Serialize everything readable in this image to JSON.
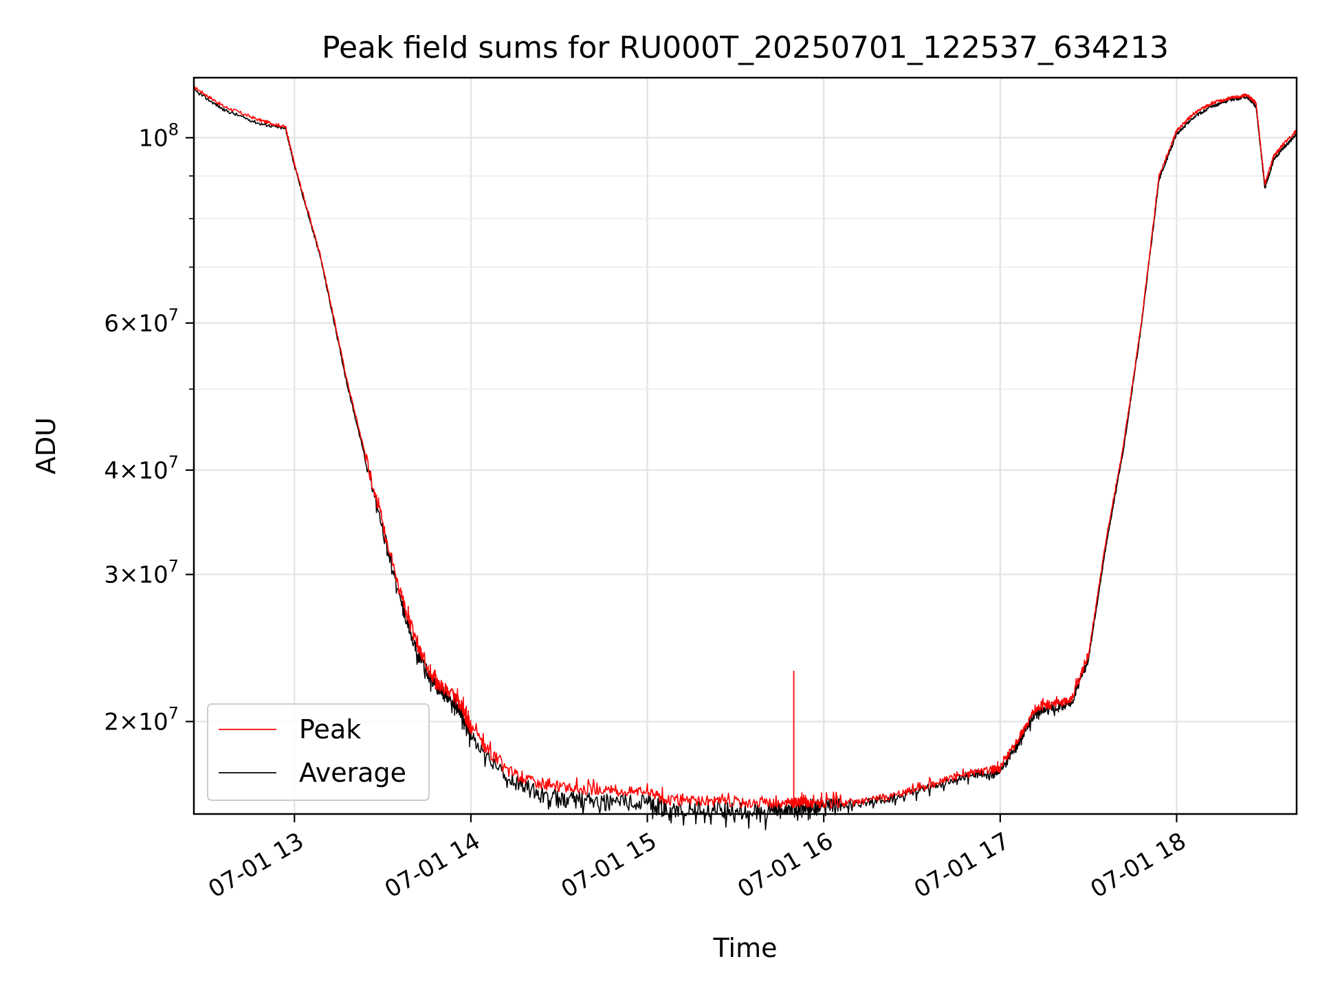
{
  "chart_data": {
    "type": "line",
    "title": "Peak field sums for RU000T_20250701_122537_634213",
    "xlabel": "Time",
    "ylabel": "ADU",
    "x_unit": "hour of day 2025-07-01",
    "xlim": [
      12.43,
      18.68
    ],
    "ylim": [
      15500000,
      118000000
    ],
    "y_scale": "log",
    "grid": true,
    "legend_position": "lower-left",
    "x_ticks": [
      {
        "value": 13,
        "label": "07-01 13"
      },
      {
        "value": 14,
        "label": "07-01 14"
      },
      {
        "value": 15,
        "label": "07-01 15"
      },
      {
        "value": 16,
        "label": "07-01 16"
      },
      {
        "value": 17,
        "label": "07-01 17"
      },
      {
        "value": 18,
        "label": "07-01 18"
      }
    ],
    "y_ticks": [
      {
        "value": 20000000,
        "mantissa": "2",
        "exp": "7"
      },
      {
        "value": 30000000,
        "mantissa": "3",
        "exp": "7"
      },
      {
        "value": 40000000,
        "mantissa": "4",
        "exp": "7"
      },
      {
        "value": 60000000,
        "mantissa": "6",
        "exp": "7"
      },
      {
        "value": 100000000,
        "mantissa": "",
        "exp": "8"
      }
    ],
    "y_minor_ticks": [
      50000000,
      70000000,
      80000000,
      90000000
    ],
    "series": [
      {
        "name": "Peak",
        "color": "#ff0000",
        "x": [
          12.43,
          12.6,
          12.8,
          12.95,
          13.0,
          13.15,
          13.3,
          13.45,
          13.6,
          13.7,
          13.8,
          13.9,
          13.95,
          14.0,
          14.2,
          14.4,
          14.6,
          14.8,
          15.0,
          15.1,
          15.3,
          15.5,
          15.7,
          15.82,
          15.9,
          16.0,
          16.2,
          16.4,
          16.6,
          16.8,
          16.95,
          17.0,
          17.1,
          17.2,
          17.3,
          17.4,
          17.5,
          17.6,
          17.7,
          17.8,
          17.9,
          18.0,
          18.1,
          18.2,
          18.3,
          18.4,
          18.45,
          18.5,
          18.55,
          18.6,
          18.68
        ],
        "y": [
          115000000,
          109000000,
          105000000,
          103000000,
          93000000,
          72000000,
          51000000,
          38000000,
          28500000,
          24500000,
          22300000,
          21500000,
          20800000,
          19500000,
          17500000,
          16800000,
          16600000,
          16500000,
          16500000,
          16100000,
          16050000,
          16000000,
          15950000,
          15980000,
          15990000,
          15950000,
          16000000,
          16300000,
          16800000,
          17300000,
          17500000,
          17600000,
          19000000,
          20700000,
          21000000,
          21200000,
          24000000,
          33000000,
          43000000,
          60000000,
          90000000,
          102000000,
          107000000,
          110000000,
          111500000,
          112500000,
          110000000,
          88000000,
          95000000,
          98000000,
          102000000
        ]
      },
      {
        "name": "Average",
        "color": "#000000",
        "x": [
          12.43,
          12.6,
          12.8,
          12.95,
          13.0,
          13.15,
          13.3,
          13.45,
          13.6,
          13.7,
          13.8,
          13.9,
          13.95,
          14.0,
          14.2,
          14.4,
          14.6,
          14.8,
          15.0,
          15.1,
          15.3,
          15.5,
          15.7,
          15.82,
          15.9,
          16.0,
          16.2,
          16.4,
          16.6,
          16.8,
          16.95,
          17.0,
          17.1,
          17.2,
          17.3,
          17.4,
          17.5,
          17.6,
          17.7,
          17.8,
          17.9,
          18.0,
          18.1,
          18.2,
          18.3,
          18.4,
          18.45,
          18.5,
          18.55,
          18.6,
          18.68
        ],
        "y": [
          114000000,
          108000000,
          104000000,
          102500000,
          92500000,
          71500000,
          50500000,
          37500000,
          28000000,
          24000000,
          22000000,
          21200000,
          20500000,
          19200000,
          17200000,
          16300000,
          16100000,
          16000000,
          16000000,
          15750000,
          15700000,
          15650000,
          15600000,
          15700000,
          15800000,
          15900000,
          15950000,
          16200000,
          16700000,
          17200000,
          17400000,
          17500000,
          18800000,
          20500000,
          20800000,
          21000000,
          23700000,
          32500000,
          42500000,
          59500000,
          89000000,
          101000000,
          106000000,
          109000000,
          111000000,
          112000000,
          109000000,
          87000000,
          94000000,
          97000000,
          101000000
        ]
      }
    ],
    "annotations": [
      {
        "series": "Peak",
        "x": 15.83,
        "y": 23000000,
        "note": "spike"
      }
    ]
  }
}
